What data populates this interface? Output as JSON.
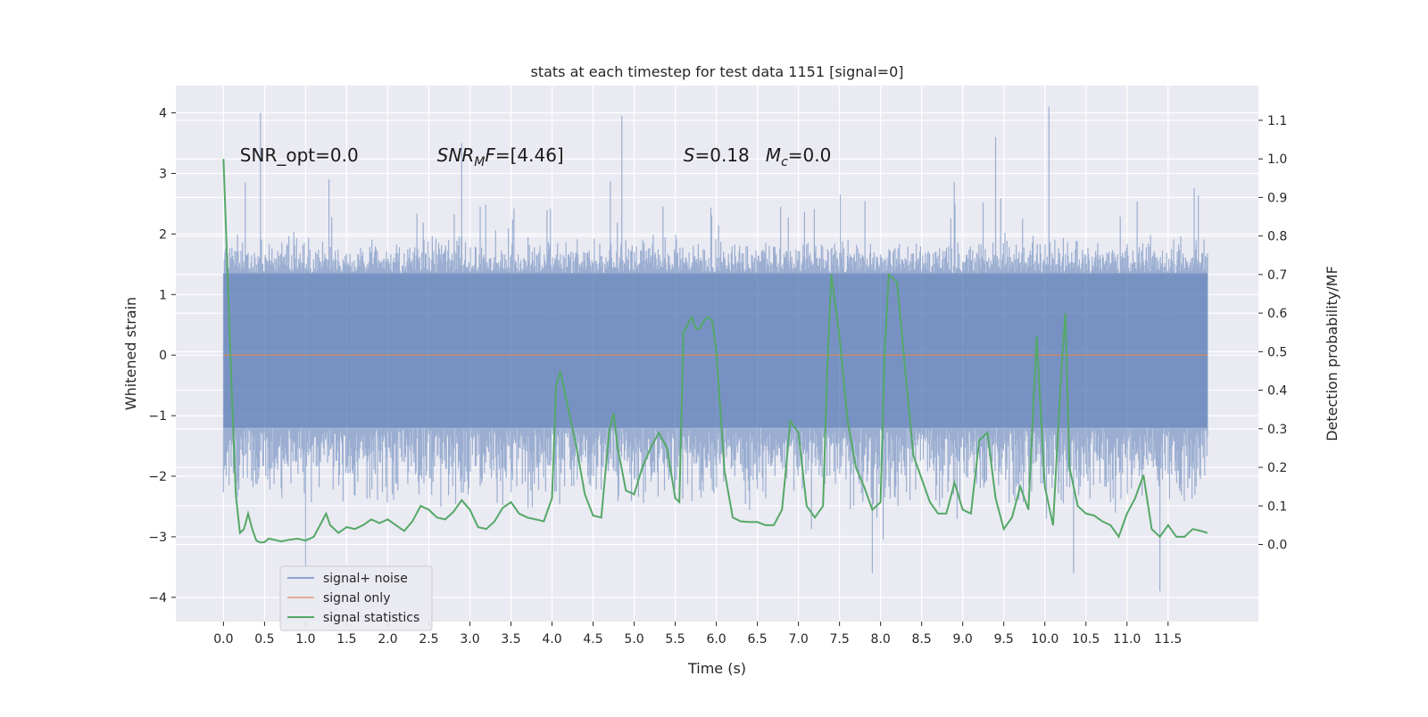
{
  "chart_data": {
    "type": "line",
    "title": "stats at each timestep for test data 1151 [signal=0]",
    "xlabel": "Time (s)",
    "ylabel": "Whitened strain",
    "ylabel_right": "Detection probability/MF",
    "xlim": [
      -0.58,
      12.6
    ],
    "ylim": [
      -4.4,
      4.45
    ],
    "ylim_right": [
      -0.2,
      1.19
    ],
    "x_ticks": [
      0.0,
      0.5,
      1.0,
      1.5,
      2.0,
      2.5,
      3.0,
      3.5,
      4.0,
      4.5,
      5.0,
      5.5,
      6.0,
      6.5,
      7.0,
      7.5,
      8.0,
      8.5,
      9.0,
      9.5,
      10.0,
      10.5,
      11.0,
      11.5
    ],
    "x_tick_labels": [
      "0.0",
      "0.5",
      "1.0",
      "1.5",
      "2.0",
      "2.5",
      "3.0",
      "3.5",
      "4.0",
      "4.5",
      "5.0",
      "5.5",
      "6.0",
      "6.5",
      "7.0",
      "7.5",
      "8.0",
      "8.5",
      "9.0",
      "9.5",
      "10.0",
      "10.5",
      "11.0",
      "11.5"
    ],
    "y_ticks": [
      -4,
      -3,
      -2,
      -1,
      0,
      1,
      2,
      3,
      4
    ],
    "y_tick_labels": [
      "−4",
      "−3",
      "−2",
      "−1",
      "0",
      "1",
      "2",
      "3",
      "4"
    ],
    "y_right_ticks": [
      0.0,
      0.1,
      0.2,
      0.3,
      0.4,
      0.5,
      0.6,
      0.7,
      0.8,
      0.9,
      1.0,
      1.1
    ],
    "y_right_tick_labels": [
      "0.0",
      "0.1",
      "0.2",
      "0.3",
      "0.4",
      "0.5",
      "0.6",
      "0.7",
      "0.8",
      "0.9",
      "1.0",
      "1.1"
    ],
    "grid": true,
    "legend_position": "lower-left",
    "annotations": [
      {
        "id": "snr-opt",
        "text": "SNR_opt=0.0",
        "x": 0.2,
        "y": 3.2
      },
      {
        "id": "snr-mf",
        "text": "=[4.46]",
        "math_base": "SNR",
        "math_sub": "M",
        "math_tail": "F",
        "x": 2.6,
        "y": 3.2
      },
      {
        "id": "stat-s",
        "text": "=0.18",
        "math_base": "S",
        "x": 5.6,
        "y": 3.2
      },
      {
        "id": "stat-mc",
        "text": "=0.0",
        "math_base": "M",
        "math_sub": "c",
        "x": 6.6,
        "y": 3.2
      }
    ],
    "series": [
      {
        "name": "signal+ noise",
        "color": "#4c72b0",
        "alpha": 0.5,
        "axis": "left",
        "t_start": 0.0,
        "t_end": 11.98,
        "envelope": {
          "core_range": [
            -1.2,
            1.35
          ],
          "typical_peaks": [
            -2.6,
            2.0
          ],
          "extremes": [
            {
              "t": 0.45,
              "v": 4.0
            },
            {
              "t": 2.9,
              "v": 3.5
            },
            {
              "t": 4.85,
              "v": 3.95
            },
            {
              "t": 9.4,
              "v": 3.6
            },
            {
              "t": 10.05,
              "v": 4.1
            },
            {
              "t": 11.4,
              "v": -3.9
            },
            {
              "t": 1.0,
              "v": -3.5
            },
            {
              "t": 7.9,
              "v": -3.6
            },
            {
              "t": 10.35,
              "v": -3.6
            }
          ]
        }
      },
      {
        "name": "signal only",
        "color": "#dd8452",
        "axis": "left",
        "x": [
          0.0,
          11.98
        ],
        "y": [
          0.0,
          0.0
        ]
      },
      {
        "name": "signal statistics",
        "color": "#55a868",
        "axis": "right",
        "x": [
          0.0,
          0.05,
          0.1,
          0.15,
          0.2,
          0.25,
          0.3,
          0.35,
          0.4,
          0.45,
          0.5,
          0.55,
          0.6,
          0.7,
          0.8,
          0.9,
          1.0,
          1.1,
          1.2,
          1.25,
          1.3,
          1.4,
          1.5,
          1.6,
          1.7,
          1.8,
          1.9,
          2.0,
          2.1,
          2.2,
          2.3,
          2.4,
          2.5,
          2.6,
          2.7,
          2.8,
          2.9,
          3.0,
          3.1,
          3.2,
          3.3,
          3.4,
          3.5,
          3.6,
          3.7,
          3.8,
          3.9,
          4.0,
          4.05,
          4.1,
          4.2,
          4.3,
          4.4,
          4.5,
          4.6,
          4.7,
          4.75,
          4.8,
          4.9,
          5.0,
          5.1,
          5.2,
          5.3,
          5.4,
          5.5,
          5.55,
          5.6,
          5.7,
          5.75,
          5.8,
          5.85,
          5.9,
          5.95,
          6.0,
          6.1,
          6.2,
          6.3,
          6.4,
          6.5,
          6.6,
          6.7,
          6.8,
          6.85,
          6.9,
          7.0,
          7.1,
          7.2,
          7.3,
          7.35,
          7.4,
          7.5,
          7.6,
          7.7,
          7.8,
          7.9,
          8.0,
          8.05,
          8.1,
          8.2,
          8.3,
          8.4,
          8.5,
          8.6,
          8.7,
          8.8,
          8.9,
          9.0,
          9.1,
          9.2,
          9.3,
          9.4,
          9.5,
          9.6,
          9.7,
          9.8,
          9.9,
          10.0,
          10.1,
          10.2,
          10.25,
          10.3,
          10.4,
          10.5,
          10.6,
          10.7,
          10.8,
          10.9,
          11.0,
          11.1,
          11.2,
          11.3,
          11.4,
          11.5,
          11.6,
          11.7,
          11.8,
          11.9,
          11.98
        ],
        "y": [
          1.0,
          0.7,
          0.4,
          0.13,
          0.03,
          0.04,
          0.08,
          0.04,
          0.01,
          0.005,
          0.006,
          0.015,
          0.013,
          0.008,
          0.012,
          0.015,
          0.01,
          0.02,
          0.06,
          0.08,
          0.05,
          0.03,
          0.045,
          0.04,
          0.05,
          0.065,
          0.055,
          0.065,
          0.05,
          0.035,
          0.06,
          0.1,
          0.09,
          0.07,
          0.065,
          0.085,
          0.115,
          0.09,
          0.045,
          0.04,
          0.06,
          0.095,
          0.11,
          0.08,
          0.07,
          0.065,
          0.06,
          0.12,
          0.41,
          0.45,
          0.35,
          0.25,
          0.13,
          0.075,
          0.07,
          0.3,
          0.34,
          0.25,
          0.14,
          0.13,
          0.2,
          0.25,
          0.29,
          0.25,
          0.12,
          0.11,
          0.55,
          0.59,
          0.56,
          0.56,
          0.58,
          0.59,
          0.58,
          0.5,
          0.19,
          0.07,
          0.06,
          0.058,
          0.058,
          0.05,
          0.05,
          0.09,
          0.2,
          0.32,
          0.29,
          0.1,
          0.07,
          0.1,
          0.45,
          0.7,
          0.54,
          0.32,
          0.2,
          0.15,
          0.09,
          0.11,
          0.5,
          0.7,
          0.68,
          0.45,
          0.23,
          0.17,
          0.11,
          0.08,
          0.08,
          0.16,
          0.09,
          0.08,
          0.27,
          0.29,
          0.12,
          0.04,
          0.07,
          0.15,
          0.09,
          0.54,
          0.15,
          0.05,
          0.45,
          0.6,
          0.2,
          0.1,
          0.08,
          0.075,
          0.06,
          0.05,
          0.02,
          0.08,
          0.12,
          0.18,
          0.04,
          0.02,
          0.05,
          0.02,
          0.02,
          0.04,
          0.035,
          0.03
        ]
      }
    ]
  }
}
